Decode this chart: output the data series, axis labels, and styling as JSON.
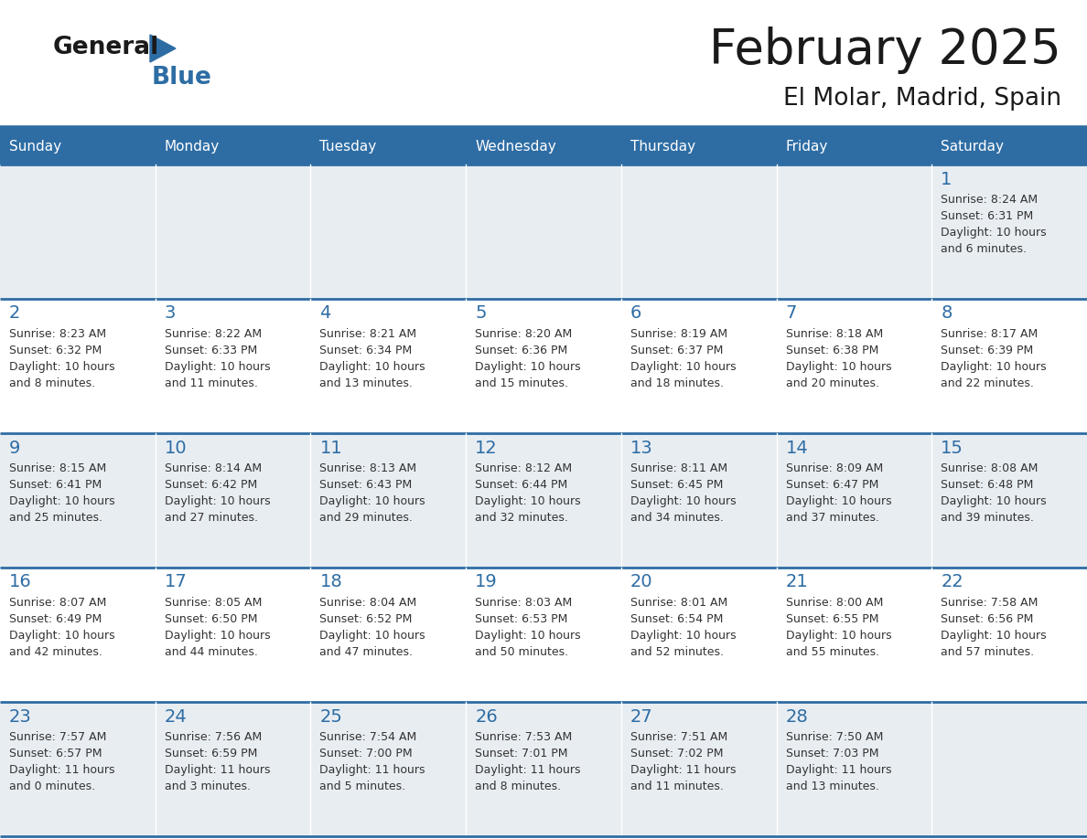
{
  "title": "February 2025",
  "subtitle": "El Molar, Madrid, Spain",
  "header_bg": "#2E6DA4",
  "header_text_color": "#FFFFFF",
  "cell_bg_odd": "#E8EDF2",
  "cell_bg_even": "#FFFFFF",
  "border_color": "#2E6DA4",
  "text_border_color": "#4472A8",
  "day_headers": [
    "Sunday",
    "Monday",
    "Tuesday",
    "Wednesday",
    "Thursday",
    "Friday",
    "Saturday"
  ],
  "title_color": "#1a1a1a",
  "subtitle_color": "#1a1a1a",
  "cell_text_color": "#333333",
  "day_num_color": "#2E6DA4",
  "logo_general_color": "#1a1a1a",
  "logo_blue_color": "#2E6DA4",
  "logo_triangle_color": "#2E6DA4",
  "calendar": [
    [
      null,
      null,
      null,
      null,
      null,
      null,
      {
        "day": 1,
        "sunrise": "8:24 AM",
        "sunset": "6:31 PM",
        "daylight": "10 hours\nand 6 minutes."
      }
    ],
    [
      {
        "day": 2,
        "sunrise": "8:23 AM",
        "sunset": "6:32 PM",
        "daylight": "10 hours\nand 8 minutes."
      },
      {
        "day": 3,
        "sunrise": "8:22 AM",
        "sunset": "6:33 PM",
        "daylight": "10 hours\nand 11 minutes."
      },
      {
        "day": 4,
        "sunrise": "8:21 AM",
        "sunset": "6:34 PM",
        "daylight": "10 hours\nand 13 minutes."
      },
      {
        "day": 5,
        "sunrise": "8:20 AM",
        "sunset": "6:36 PM",
        "daylight": "10 hours\nand 15 minutes."
      },
      {
        "day": 6,
        "sunrise": "8:19 AM",
        "sunset": "6:37 PM",
        "daylight": "10 hours\nand 18 minutes."
      },
      {
        "day": 7,
        "sunrise": "8:18 AM",
        "sunset": "6:38 PM",
        "daylight": "10 hours\nand 20 minutes."
      },
      {
        "day": 8,
        "sunrise": "8:17 AM",
        "sunset": "6:39 PM",
        "daylight": "10 hours\nand 22 minutes."
      }
    ],
    [
      {
        "day": 9,
        "sunrise": "8:15 AM",
        "sunset": "6:41 PM",
        "daylight": "10 hours\nand 25 minutes."
      },
      {
        "day": 10,
        "sunrise": "8:14 AM",
        "sunset": "6:42 PM",
        "daylight": "10 hours\nand 27 minutes."
      },
      {
        "day": 11,
        "sunrise": "8:13 AM",
        "sunset": "6:43 PM",
        "daylight": "10 hours\nand 29 minutes."
      },
      {
        "day": 12,
        "sunrise": "8:12 AM",
        "sunset": "6:44 PM",
        "daylight": "10 hours\nand 32 minutes."
      },
      {
        "day": 13,
        "sunrise": "8:11 AM",
        "sunset": "6:45 PM",
        "daylight": "10 hours\nand 34 minutes."
      },
      {
        "day": 14,
        "sunrise": "8:09 AM",
        "sunset": "6:47 PM",
        "daylight": "10 hours\nand 37 minutes."
      },
      {
        "day": 15,
        "sunrise": "8:08 AM",
        "sunset": "6:48 PM",
        "daylight": "10 hours\nand 39 minutes."
      }
    ],
    [
      {
        "day": 16,
        "sunrise": "8:07 AM",
        "sunset": "6:49 PM",
        "daylight": "10 hours\nand 42 minutes."
      },
      {
        "day": 17,
        "sunrise": "8:05 AM",
        "sunset": "6:50 PM",
        "daylight": "10 hours\nand 44 minutes."
      },
      {
        "day": 18,
        "sunrise": "8:04 AM",
        "sunset": "6:52 PM",
        "daylight": "10 hours\nand 47 minutes."
      },
      {
        "day": 19,
        "sunrise": "8:03 AM",
        "sunset": "6:53 PM",
        "daylight": "10 hours\nand 50 minutes."
      },
      {
        "day": 20,
        "sunrise": "8:01 AM",
        "sunset": "6:54 PM",
        "daylight": "10 hours\nand 52 minutes."
      },
      {
        "day": 21,
        "sunrise": "8:00 AM",
        "sunset": "6:55 PM",
        "daylight": "10 hours\nand 55 minutes."
      },
      {
        "day": 22,
        "sunrise": "7:58 AM",
        "sunset": "6:56 PM",
        "daylight": "10 hours\nand 57 minutes."
      }
    ],
    [
      {
        "day": 23,
        "sunrise": "7:57 AM",
        "sunset": "6:57 PM",
        "daylight": "11 hours\nand 0 minutes."
      },
      {
        "day": 24,
        "sunrise": "7:56 AM",
        "sunset": "6:59 PM",
        "daylight": "11 hours\nand 3 minutes."
      },
      {
        "day": 25,
        "sunrise": "7:54 AM",
        "sunset": "7:00 PM",
        "daylight": "11 hours\nand 5 minutes."
      },
      {
        "day": 26,
        "sunrise": "7:53 AM",
        "sunset": "7:01 PM",
        "daylight": "11 hours\nand 8 minutes."
      },
      {
        "day": 27,
        "sunrise": "7:51 AM",
        "sunset": "7:02 PM",
        "daylight": "11 hours\nand 11 minutes."
      },
      {
        "day": 28,
        "sunrise": "7:50 AM",
        "sunset": "7:03 PM",
        "daylight": "11 hours\nand 13 minutes."
      },
      null
    ]
  ],
  "figwidth": 11.88,
  "figheight": 9.18,
  "dpi": 100
}
